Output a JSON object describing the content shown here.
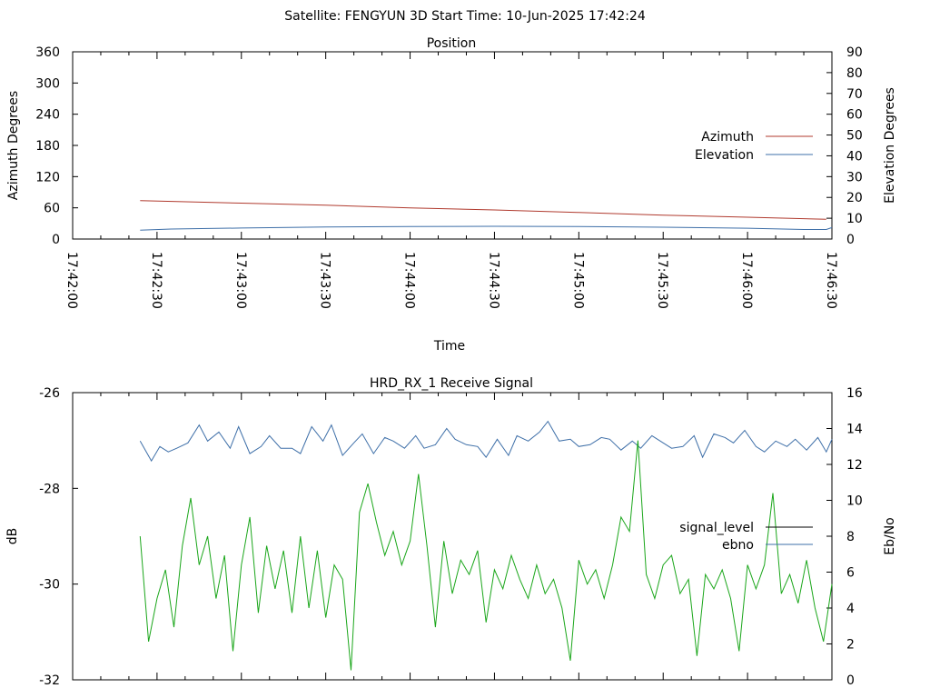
{
  "header": {
    "title": "Satellite: FENGYUN 3D    Start Time: 10-Jun-2025 17:42:24"
  },
  "colors": {
    "azimuth": "#b03a2e",
    "elevation": "#3e6fa8",
    "signal_level": "#000000",
    "signal_green": "#1aa61a",
    "ebno": "#3e6fa8",
    "axis": "#000000"
  },
  "chart_data": [
    {
      "type": "line",
      "title": "Position",
      "xlabel": "Time",
      "ylabel_left": "Azimuth Degrees",
      "ylabel_right": "Elevation Degrees",
      "x_ticks": [
        "17:42:00",
        "17:42:30",
        "17:43:00",
        "17:43:30",
        "17:44:00",
        "17:44:30",
        "17:45:00",
        "17:45:30",
        "17:46:00",
        "17:46:30"
      ],
      "y_left_ticks": [
        "0",
        "60",
        "120",
        "180",
        "240",
        "300",
        "360"
      ],
      "y_right_ticks": [
        "0",
        "10",
        "20",
        "30",
        "40",
        "50",
        "60",
        "70",
        "80",
        "90"
      ],
      "xlim": [
        "17:42:00",
        "17:46:30"
      ],
      "ylim_left": [
        0,
        360
      ],
      "ylim_right": [
        0,
        90
      ],
      "legend_position": "right",
      "series": [
        {
          "name": "Azimuth",
          "axis": "left",
          "points": [
            [
              "17:42:24",
              74
            ],
            [
              "17:43:00",
              69
            ],
            [
              "17:43:30",
              65
            ],
            [
              "17:44:00",
              60
            ],
            [
              "17:44:30",
              56
            ],
            [
              "17:45:00",
              51
            ],
            [
              "17:45:30",
              46
            ],
            [
              "17:46:00",
              42
            ],
            [
              "17:46:28",
              38
            ]
          ]
        },
        {
          "name": "Elevation",
          "axis": "right",
          "points": [
            [
              "17:42:24",
              4.3
            ],
            [
              "17:42:35",
              4.8
            ],
            [
              "17:43:00",
              5.3
            ],
            [
              "17:43:30",
              5.8
            ],
            [
              "17:44:00",
              6.0
            ],
            [
              "17:44:30",
              6.1
            ],
            [
              "17:45:00",
              6.0
            ],
            [
              "17:45:30",
              5.7
            ],
            [
              "17:46:00",
              5.2
            ],
            [
              "17:46:20",
              4.6
            ],
            [
              "17:46:28",
              4.6
            ],
            [
              "17:46:30",
              5.5
            ]
          ]
        }
      ]
    },
    {
      "type": "line",
      "title": "HRD_RX_1 Receive Signal",
      "ylabel_left": "dB",
      "ylabel_right": "Eb/No",
      "y_left_ticks": [
        "-26",
        "-28",
        "-30",
        "-32"
      ],
      "y_right_ticks": [
        "0",
        "2",
        "4",
        "6",
        "8",
        "10",
        "12",
        "14",
        "16"
      ],
      "ylim_left": [
        -32,
        -26
      ],
      "ylim_right": [
        0,
        16
      ],
      "legend_position": "right",
      "x_range_seconds": [
        0,
        270
      ],
      "series": [
        {
          "name": "signal_level",
          "axis": "left",
          "x_seconds": [],
          "values": []
        },
        {
          "name": "ebno",
          "axis": "right",
          "x_seconds": [
            24,
            28,
            31,
            34,
            37,
            41,
            45,
            48,
            52,
            56,
            59,
            63,
            67,
            70,
            74,
            78,
            81,
            85,
            89,
            92,
            96,
            100,
            103,
            107,
            111,
            114,
            118,
            122,
            125,
            129,
            133,
            136,
            140,
            144,
            147,
            151,
            155,
            158,
            162,
            166,
            169,
            173,
            177,
            180,
            184,
            188,
            191,
            195,
            199,
            202,
            206,
            210,
            213,
            217,
            221,
            224,
            228,
            232,
            235,
            239,
            243,
            246,
            250,
            254,
            257,
            261,
            265,
            268,
            270
          ],
          "values": [
            13.3,
            12.2,
            13.0,
            12.7,
            12.9,
            13.2,
            14.2,
            13.3,
            13.8,
            12.9,
            14.1,
            12.6,
            13.0,
            13.6,
            12.9,
            12.9,
            12.6,
            14.1,
            13.3,
            14.2,
            12.5,
            13.2,
            13.7,
            12.6,
            13.5,
            13.3,
            12.9,
            13.6,
            12.9,
            13.1,
            14.0,
            13.4,
            13.1,
            13.0,
            12.4,
            13.4,
            12.5,
            13.6,
            13.3,
            13.8,
            14.4,
            13.3,
            13.4,
            13.0,
            13.1,
            13.5,
            13.4,
            12.8,
            13.3,
            12.9,
            13.6,
            13.2,
            12.9,
            13.0,
            13.6,
            12.4,
            13.7,
            13.5,
            13.2,
            13.9,
            13.0,
            12.7,
            13.3,
            13.0,
            13.4,
            12.8,
            13.5,
            12.7,
            13.4
          ]
        },
        {
          "name": "",
          "axis": "left",
          "x_seconds": [
            24,
            27,
            30,
            33,
            36,
            39,
            42,
            45,
            48,
            51,
            54,
            57,
            60,
            63,
            66,
            69,
            72,
            75,
            78,
            81,
            84,
            87,
            90,
            93,
            96,
            99,
            102,
            105,
            108,
            111,
            114,
            117,
            120,
            123,
            126,
            129,
            132,
            135,
            138,
            141,
            144,
            147,
            150,
            153,
            156,
            159,
            162,
            165,
            168,
            171,
            174,
            177,
            180,
            183,
            186,
            189,
            192,
            195,
            198,
            201,
            204,
            207,
            210,
            213,
            216,
            219,
            222,
            225,
            228,
            231,
            234,
            237,
            240,
            243,
            246,
            249,
            252,
            255,
            258,
            261,
            264,
            267,
            270
          ],
          "values": [
            -29.0,
            -31.2,
            -30.3,
            -29.7,
            -30.9,
            -29.2,
            -28.2,
            -29.6,
            -29.0,
            -30.3,
            -29.4,
            -31.4,
            -29.6,
            -28.6,
            -30.6,
            -29.2,
            -30.1,
            -29.3,
            -30.6,
            -29.0,
            -30.5,
            -29.3,
            -30.7,
            -29.6,
            -29.9,
            -31.8,
            -28.5,
            -27.9,
            -28.7,
            -29.4,
            -28.9,
            -29.6,
            -29.1,
            -27.7,
            -29.2,
            -30.9,
            -29.1,
            -30.2,
            -29.5,
            -29.8,
            -29.3,
            -30.8,
            -29.7,
            -30.1,
            -29.4,
            -29.9,
            -30.3,
            -29.6,
            -30.2,
            -29.9,
            -30.5,
            -31.6,
            -29.5,
            -30.0,
            -29.7,
            -30.3,
            -29.6,
            -28.6,
            -28.9,
            -27.0,
            -29.8,
            -30.3,
            -29.6,
            -29.4,
            -30.2,
            -29.9,
            -31.5,
            -29.8,
            -30.1,
            -29.7,
            -30.3,
            -31.4,
            -29.6,
            -30.1,
            -29.6,
            -28.1,
            -30.2,
            -29.8,
            -30.4,
            -29.5,
            -30.5,
            -31.2,
            -30.0
          ]
        }
      ]
    }
  ]
}
